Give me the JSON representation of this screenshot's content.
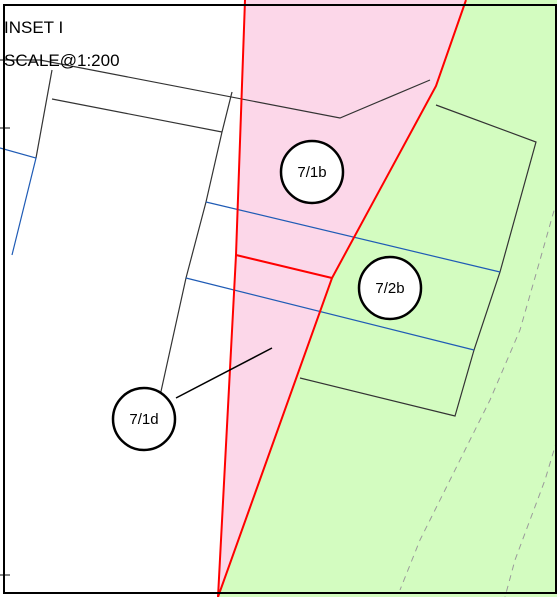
{
  "inset": {
    "title": "INSET I",
    "scale": "SCALE@1:200"
  },
  "lots": [
    {
      "id": "lot-7-1b",
      "label": "7/1b"
    },
    {
      "id": "lot-7-2b",
      "label": "7/2b"
    },
    {
      "id": "lot-7-1d",
      "label": "7/1d"
    }
  ],
  "colors": {
    "pink_zone": "#fcd7e9",
    "green_zone": "#d3fcc0",
    "red_boundary": "#ff0000",
    "blue_line": "#1f5bb5",
    "black_line": "#333333",
    "dashed_line": "#9a9a9a"
  }
}
